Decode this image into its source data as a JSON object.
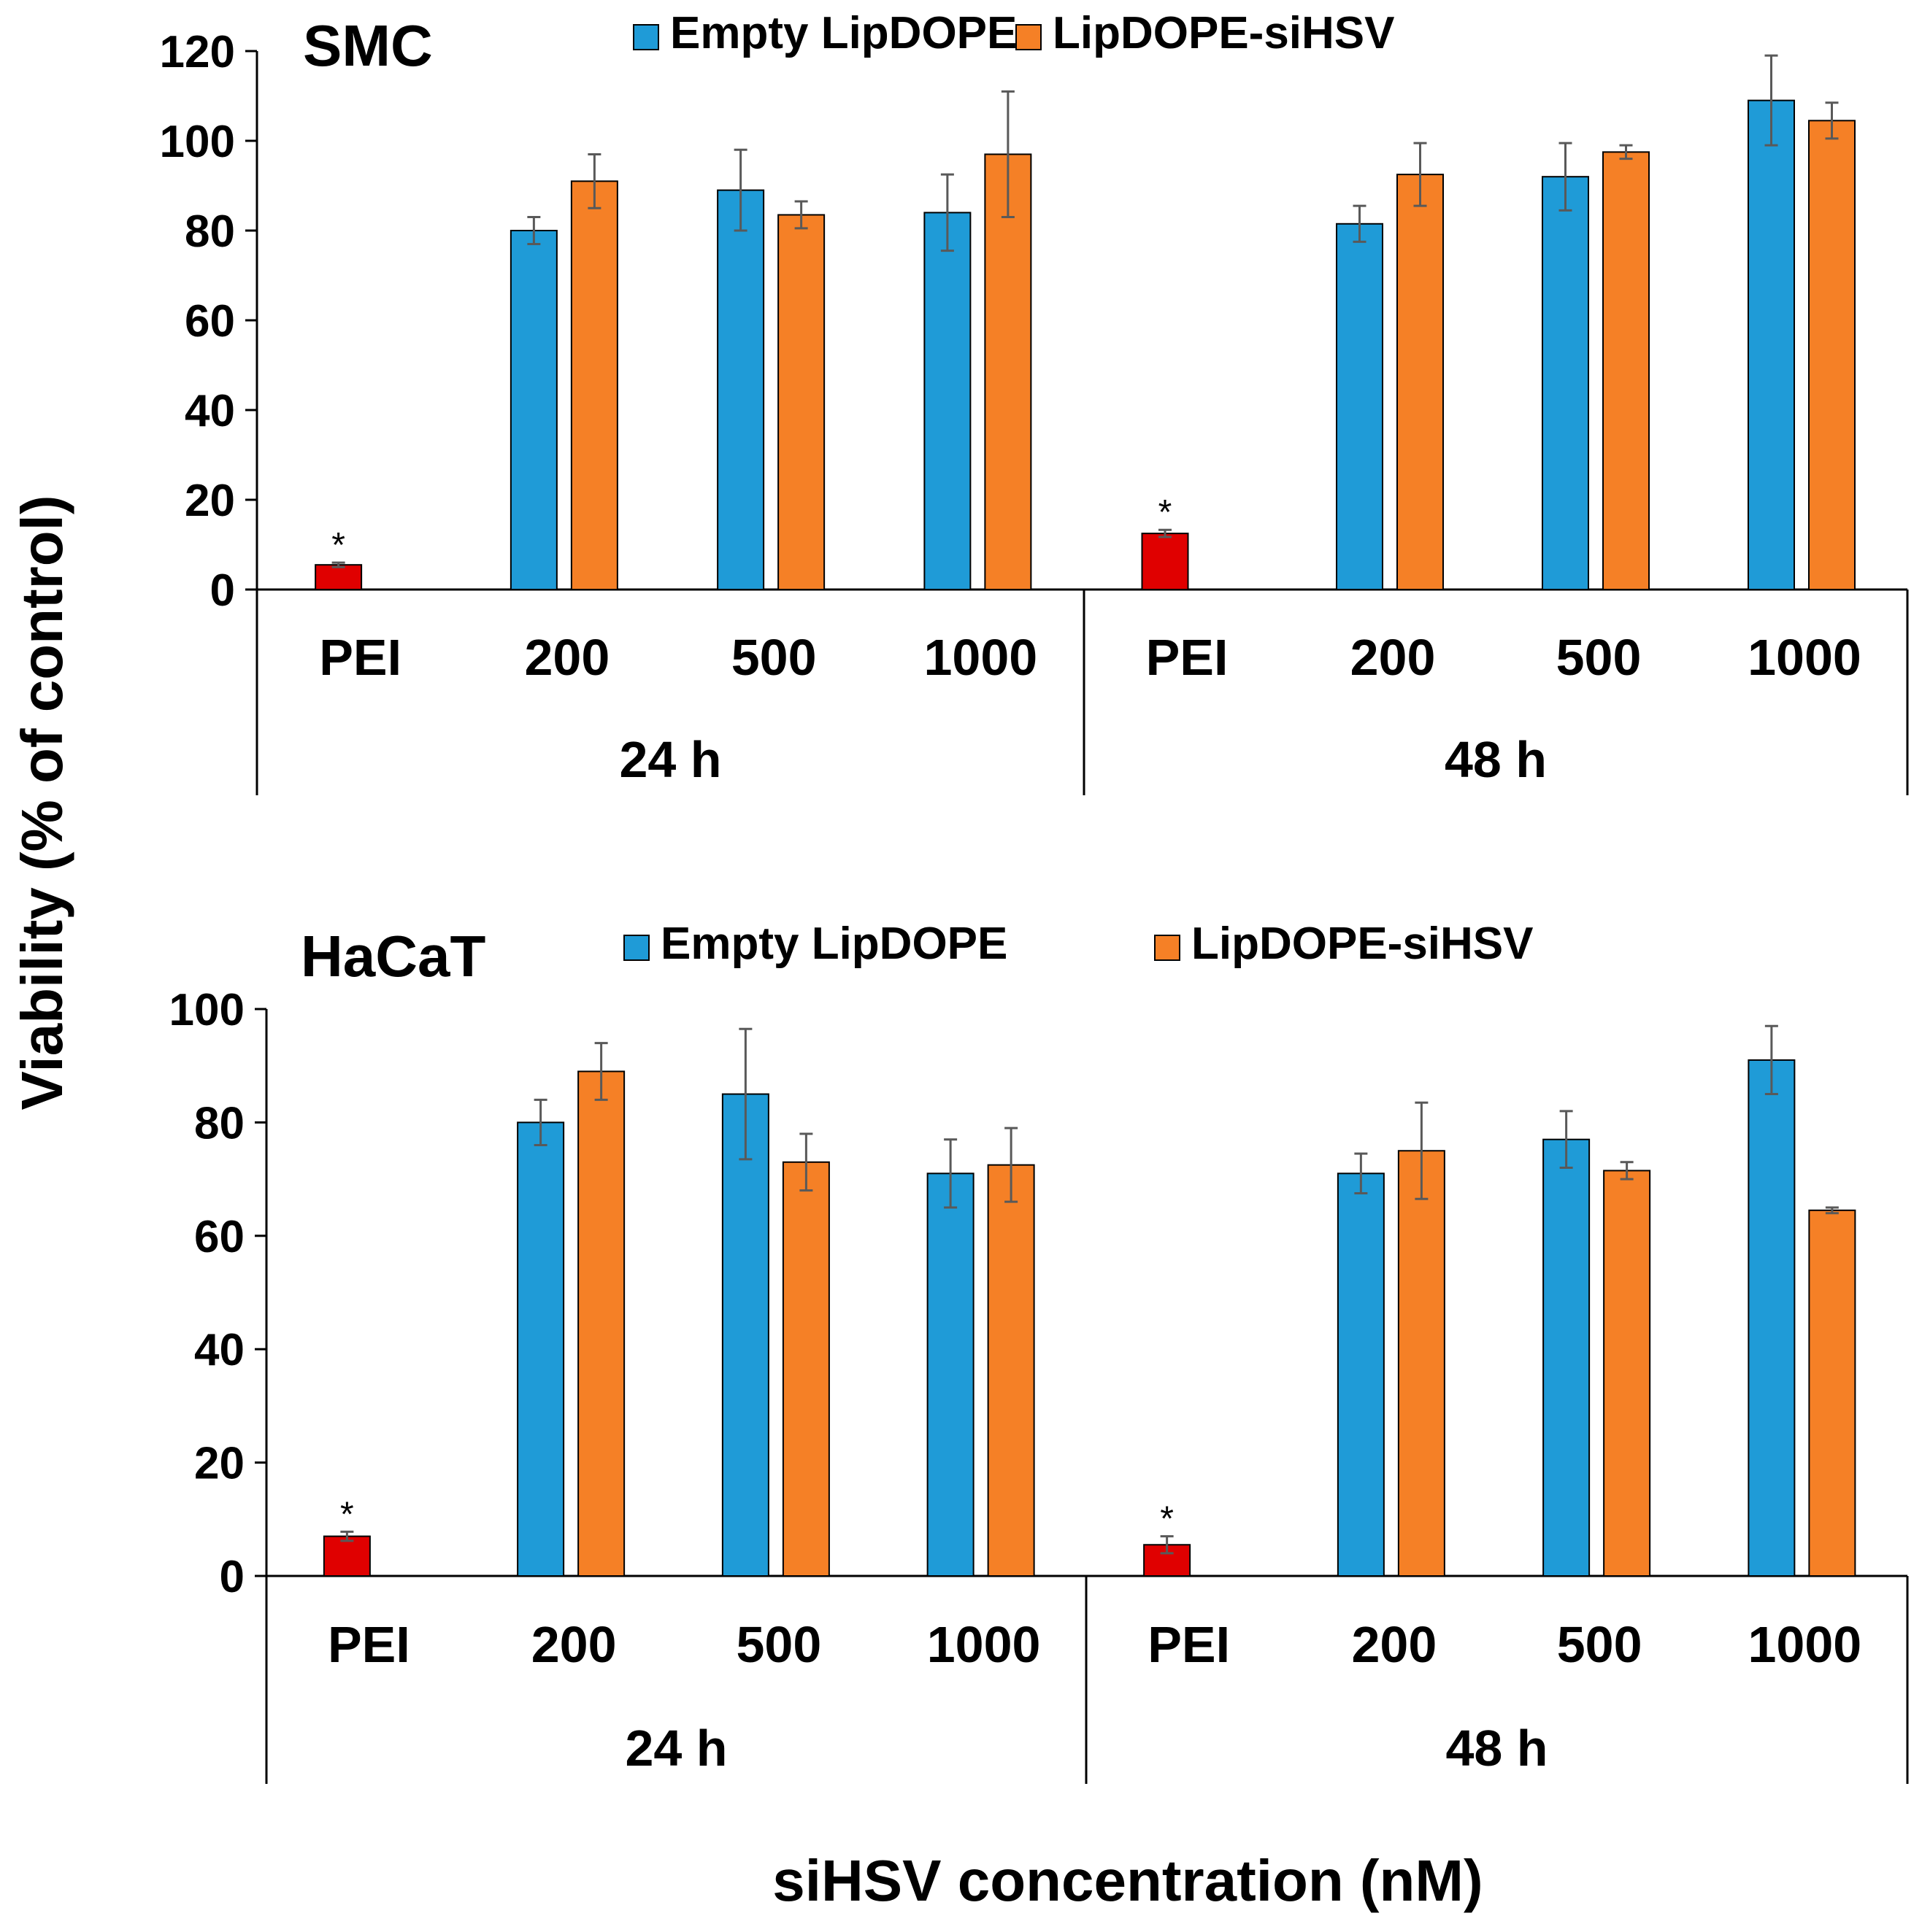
{
  "figure": {
    "y_axis_title": "Viability (% of control)",
    "x_axis_title": "siHSV concentration (nM)"
  },
  "colors": {
    "empty": "#1f9bd7",
    "sihsv": "#f58026",
    "pei": "#e00000",
    "errorbar": "#595959",
    "axis": "#000000"
  },
  "chart_data": [
    {
      "type": "bar",
      "title": "SMC",
      "ylabel": "Viability (% of control)",
      "xlabel": "siHSV concentration (nM)",
      "ylim": [
        0,
        120
      ],
      "yticks": [
        0,
        20,
        40,
        60,
        80,
        100,
        120
      ],
      "legend": [
        "Empty LipDOPE",
        "LipDOPE-siHSV"
      ],
      "groups": [
        {
          "label": "24 h",
          "categories": [
            {
              "label": "PEI",
              "pei": {
                "value": 5.5,
                "err": 0.5,
                "star": "*"
              }
            },
            {
              "label": "200",
              "empty": {
                "value": 80,
                "err": 3
              },
              "sihsv": {
                "value": 91,
                "err": 6
              }
            },
            {
              "label": "500",
              "empty": {
                "value": 89,
                "err": 9
              },
              "sihsv": {
                "value": 83.5,
                "err": 3
              }
            },
            {
              "label": "1000",
              "empty": {
                "value": 84,
                "err": 8.5
              },
              "sihsv": {
                "value": 97,
                "err": 14
              }
            }
          ]
        },
        {
          "label": "48 h",
          "categories": [
            {
              "label": "PEI",
              "pei": {
                "value": 12.5,
                "err": 0.8,
                "star": "*"
              }
            },
            {
              "label": "200",
              "empty": {
                "value": 81.5,
                "err": 4
              },
              "sihsv": {
                "value": 92.5,
                "err": 7
              }
            },
            {
              "label": "500",
              "empty": {
                "value": 92,
                "err": 7.5
              },
              "sihsv": {
                "value": 97.5,
                "err": 1.5
              }
            },
            {
              "label": "1000",
              "empty": {
                "value": 109,
                "err": 10
              },
              "sihsv": {
                "value": 104.5,
                "err": 4
              }
            }
          ]
        }
      ]
    },
    {
      "type": "bar",
      "title": "HaCaT",
      "ylabel": "Viability (% of control)",
      "xlabel": "siHSV concentration (nM)",
      "ylim": [
        0,
        100
      ],
      "yticks": [
        0,
        20,
        40,
        60,
        80,
        100
      ],
      "legend": [
        "Empty LipDOPE",
        "LipDOPE-siHSV"
      ],
      "groups": [
        {
          "label": "24 h",
          "categories": [
            {
              "label": "PEI",
              "pei": {
                "value": 7,
                "err": 0.8,
                "star": "*"
              }
            },
            {
              "label": "200",
              "empty": {
                "value": 80,
                "err": 4
              },
              "sihsv": {
                "value": 89,
                "err": 5
              }
            },
            {
              "label": "500",
              "empty": {
                "value": 85,
                "err": 11.5
              },
              "sihsv": {
                "value": 73,
                "err": 5
              }
            },
            {
              "label": "1000",
              "empty": {
                "value": 71,
                "err": 6
              },
              "sihsv": {
                "value": 72.5,
                "err": 6.5
              }
            }
          ]
        },
        {
          "label": "48 h",
          "categories": [
            {
              "label": "PEI",
              "pei": {
                "value": 5.5,
                "err": 1.5,
                "star": "*"
              }
            },
            {
              "label": "200",
              "empty": {
                "value": 71,
                "err": 3.5
              },
              "sihsv": {
                "value": 75,
                "err": 8.5
              }
            },
            {
              "label": "500",
              "empty": {
                "value": 77,
                "err": 5
              },
              "sihsv": {
                "value": 71.5,
                "err": 1.5
              }
            },
            {
              "label": "1000",
              "empty": {
                "value": 91,
                "err": 6
              },
              "sihsv": {
                "value": 64.5,
                "err": 0.5
              }
            }
          ]
        }
      ]
    }
  ]
}
